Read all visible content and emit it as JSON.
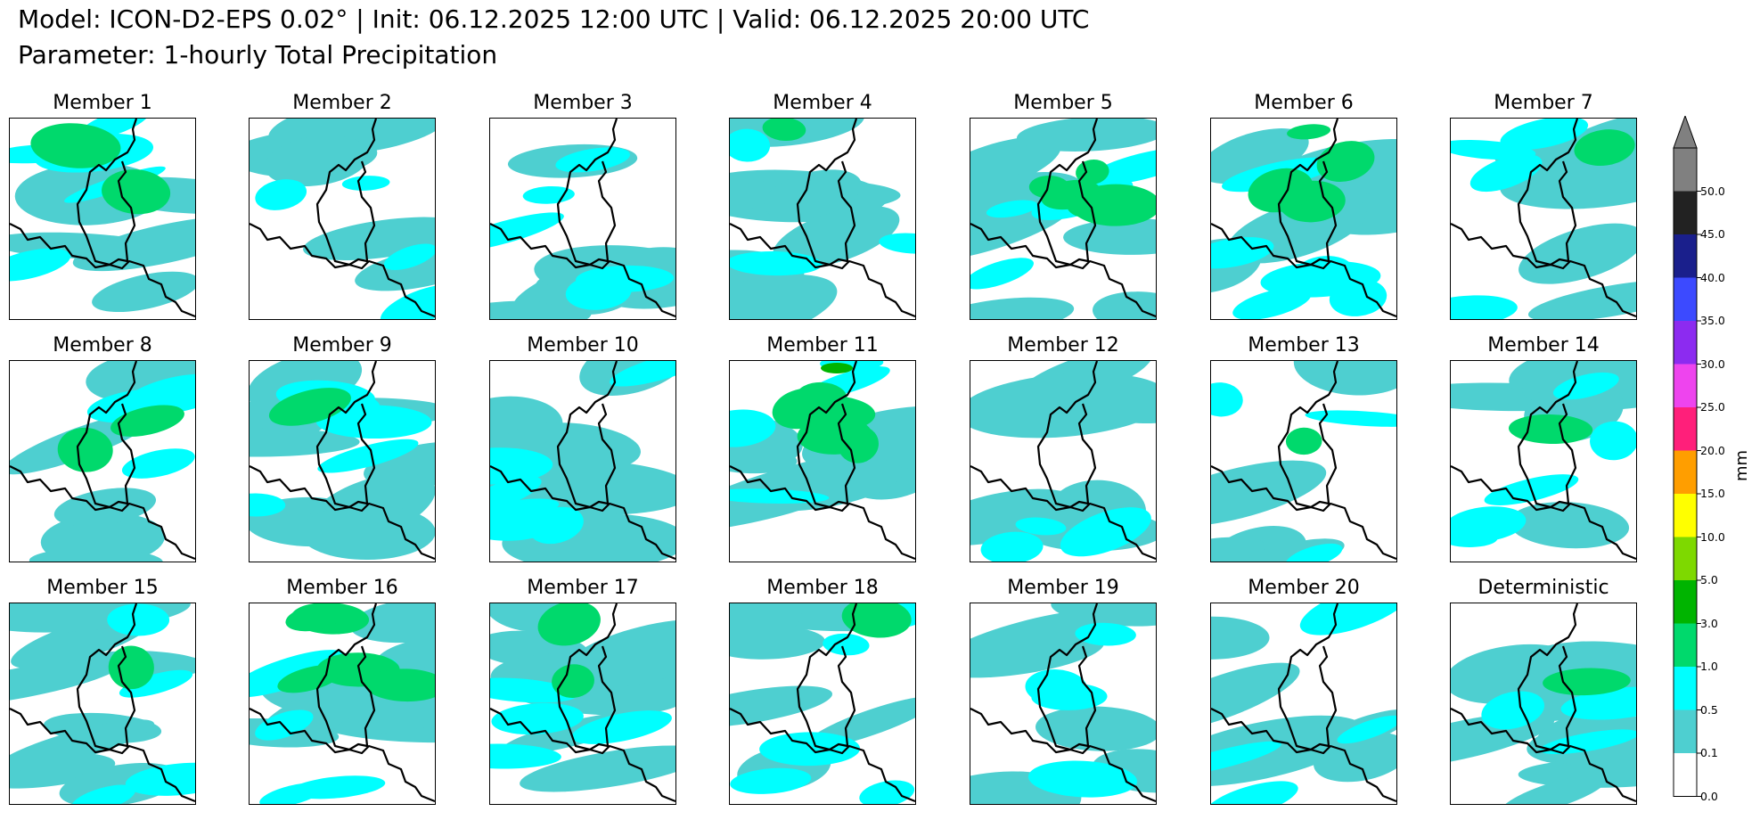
{
  "header": {
    "line1": "Model: ICON-D2-EPS 0.02° | Init: 06.12.2025 12:00 UTC | Valid: 06.12.2025 20:00 UTC",
    "line2": "Parameter: 1-hourly Total Precipitation"
  },
  "panels": [
    {
      "title": "Member 1"
    },
    {
      "title": "Member 2"
    },
    {
      "title": "Member 3"
    },
    {
      "title": "Member 4"
    },
    {
      "title": "Member 5"
    },
    {
      "title": "Member 6"
    },
    {
      "title": "Member 7"
    },
    {
      "title": "Member 8"
    },
    {
      "title": "Member 9"
    },
    {
      "title": "Member 10"
    },
    {
      "title": "Member 11"
    },
    {
      "title": "Member 12"
    },
    {
      "title": "Member 13"
    },
    {
      "title": "Member 14"
    },
    {
      "title": "Member 15"
    },
    {
      "title": "Member 16"
    },
    {
      "title": "Member 17"
    },
    {
      "title": "Member 18"
    },
    {
      "title": "Member 19"
    },
    {
      "title": "Member 20"
    },
    {
      "title": "Deterministic"
    }
  ],
  "colorbar": {
    "unit": "mm",
    "levels": [
      "0.0",
      "0.1",
      "0.5",
      "1.0",
      "3.0",
      "5.0",
      "10.0",
      "15.0",
      "20.0",
      "25.0",
      "30.0",
      "35.0",
      "40.0",
      "45.0",
      "50.0"
    ],
    "colors": [
      "#ffffff",
      "#4ecfd0",
      "#00ffff",
      "#00d96c",
      "#00b400",
      "#7ed900",
      "#ffff00",
      "#ff9e00",
      "#ff1f7a",
      "#ee44ee",
      "#8c2bf0",
      "#3c4aff",
      "#1a1f8c",
      "#222222",
      "#808080"
    ],
    "extend_color": "#808080"
  }
}
